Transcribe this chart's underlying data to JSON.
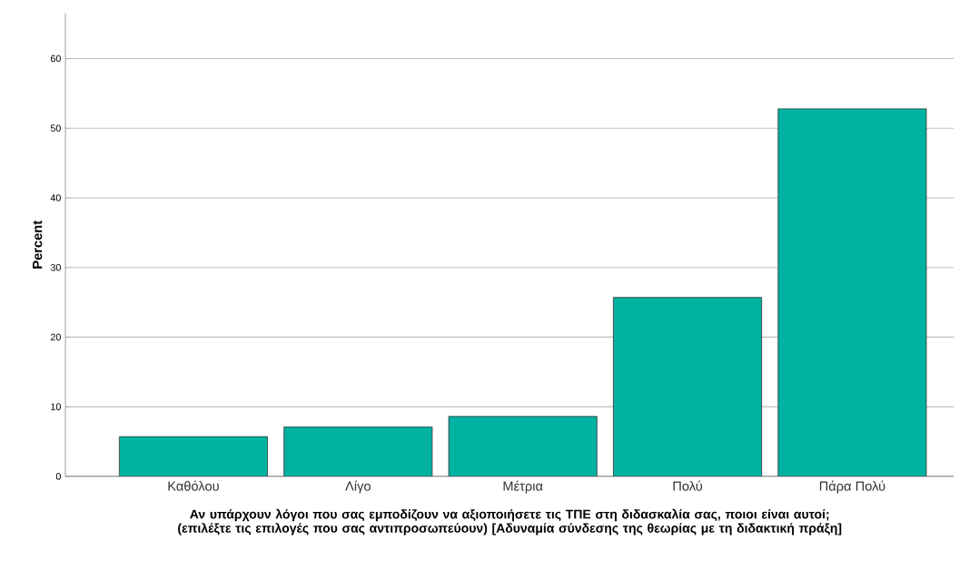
{
  "chart_data": {
    "type": "bar",
    "xlabel": "Αν υπάρχουν λόγοι που σας εμποδίζουν να αξιοποιήσετε τις ΤΠΕ στη διδασκαλία σας, ποιοι είναι αυτοί; (επιλέξτε τις επιλογές που σας αντιπροσωπεύουν)  [Αδυναμία σύνδεσης της θεωρίας με τη διδακτική πράξη]",
    "ylabel": "Percent",
    "categories": [
      "Καθόλου",
      "Λίγο",
      "Μέτρια",
      "Πολύ",
      "Πάρα Πολύ"
    ],
    "values": [
      5.7,
      7.1,
      8.6,
      25.7,
      52.8
    ],
    "color": "#00b2a1",
    "ylim": [
      0,
      66.5
    ],
    "yticks": [
      0,
      10,
      20,
      30,
      40,
      50,
      60
    ],
    "grid": "y"
  }
}
